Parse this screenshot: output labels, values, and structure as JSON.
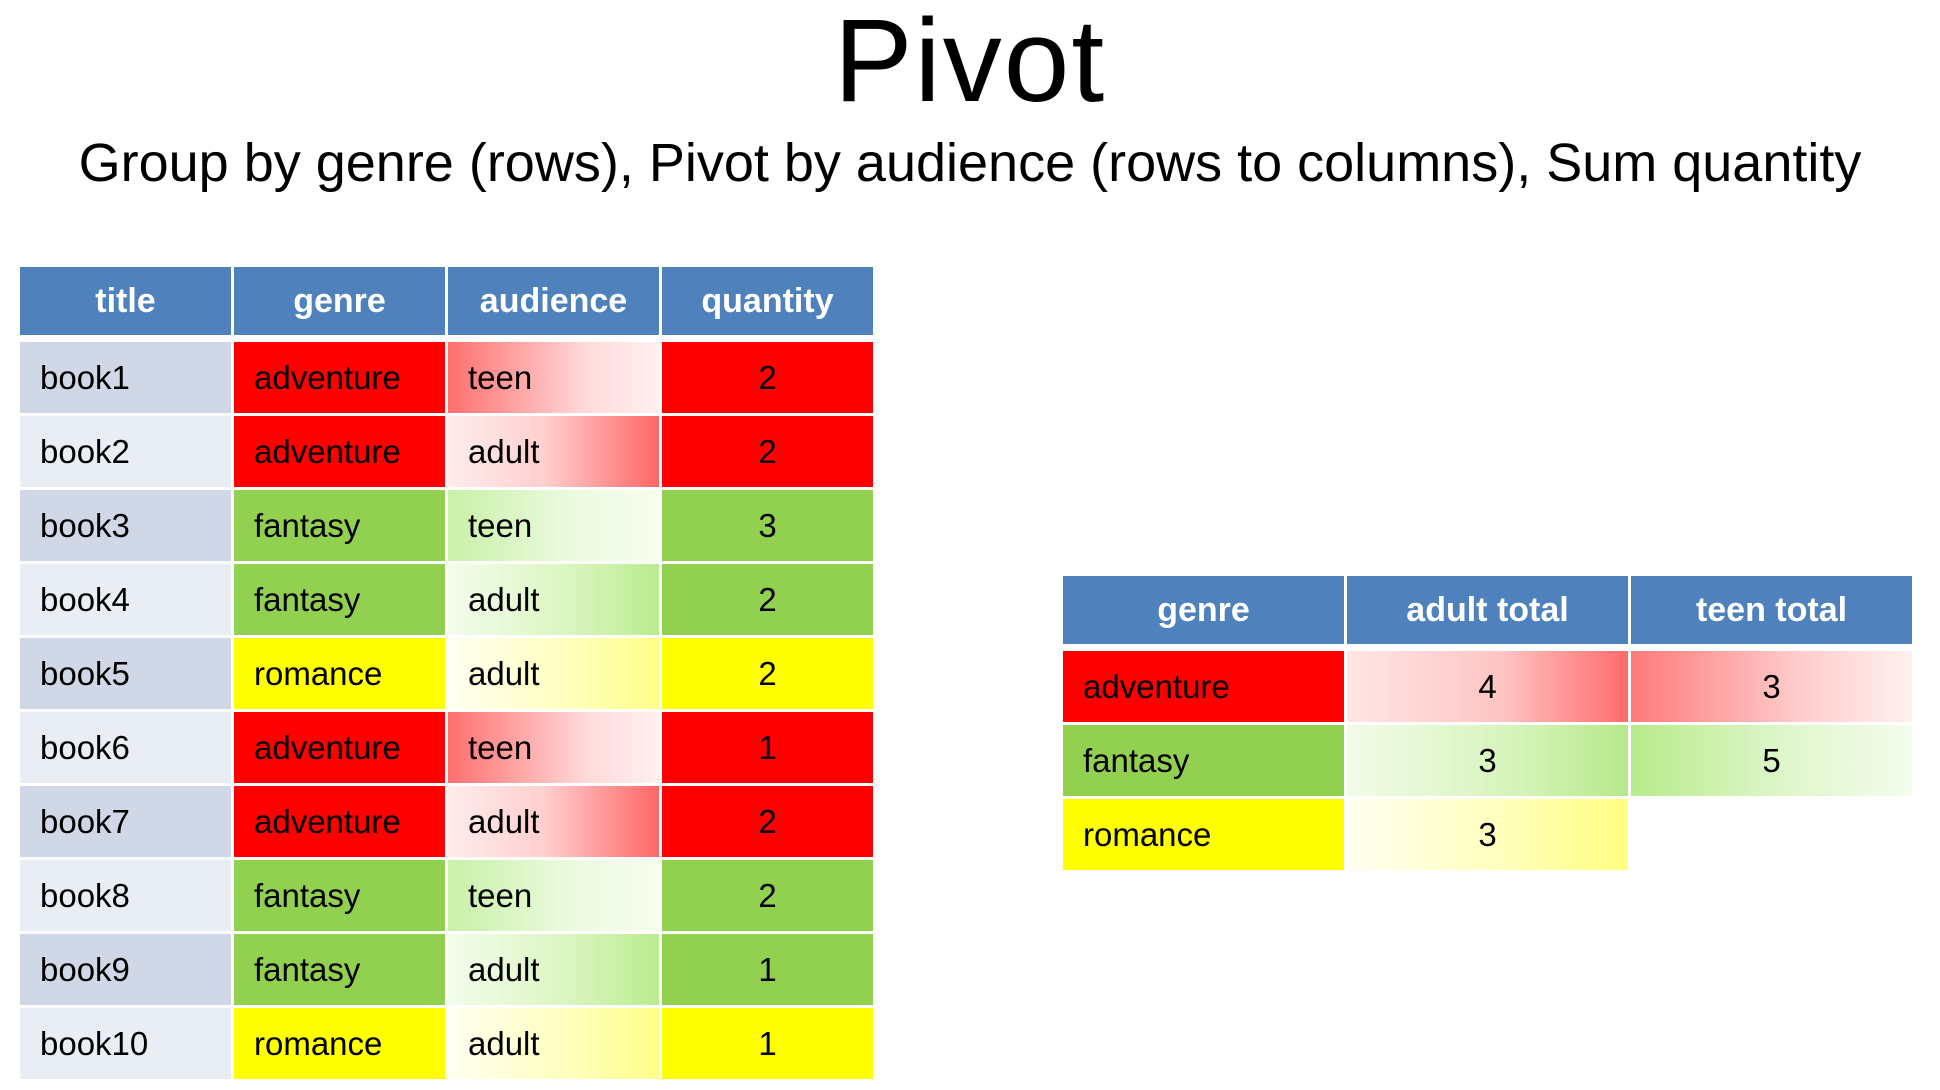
{
  "title": "Pivot",
  "subtitle": "Group by genre (rows), Pivot by audience (rows to columns), Sum quantity",
  "source_table": {
    "headers": [
      "title",
      "genre",
      "audience",
      "quantity"
    ],
    "rows": [
      {
        "title": "book1",
        "genre": "adventure",
        "audience": "teen",
        "quantity": "2"
      },
      {
        "title": "book2",
        "genre": "adventure",
        "audience": "adult",
        "quantity": "2"
      },
      {
        "title": "book3",
        "genre": "fantasy",
        "audience": "teen",
        "quantity": "3"
      },
      {
        "title": "book4",
        "genre": "fantasy",
        "audience": "adult",
        "quantity": "2"
      },
      {
        "title": "book5",
        "genre": "romance",
        "audience": "adult",
        "quantity": "2"
      },
      {
        "title": "book6",
        "genre": "adventure",
        "audience": "teen",
        "quantity": "1"
      },
      {
        "title": "book7",
        "genre": "adventure",
        "audience": "adult",
        "quantity": "2"
      },
      {
        "title": "book8",
        "genre": "fantasy",
        "audience": "teen",
        "quantity": "2"
      },
      {
        "title": "book9",
        "genre": "fantasy",
        "audience": "adult",
        "quantity": "1"
      },
      {
        "title": "book10",
        "genre": "romance",
        "audience": "adult",
        "quantity": "1"
      }
    ]
  },
  "pivot_table": {
    "headers": [
      "genre",
      "adult total",
      "teen total"
    ],
    "rows": [
      {
        "genre": "adventure",
        "adult_total": "4",
        "teen_total": "3"
      },
      {
        "genre": "fantasy",
        "adult_total": "3",
        "teen_total": "5"
      },
      {
        "genre": "romance",
        "adult_total": "3",
        "teen_total": ""
      }
    ]
  },
  "colors": {
    "header": "#4f81bd",
    "adventure": "#ff0000",
    "fantasy": "#92d050",
    "romance": "#ffff00"
  }
}
